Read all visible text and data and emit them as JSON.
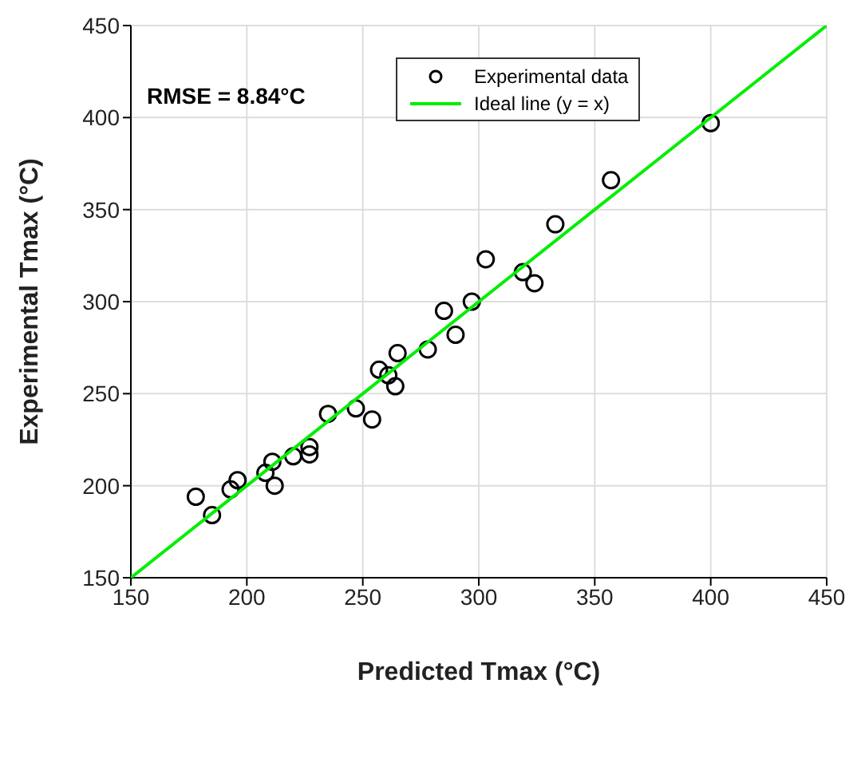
{
  "chart_data": {
    "type": "scatter",
    "xlabel": "Predicted Tmax (°C)",
    "ylabel": "Experimental Tmax (°C)",
    "annotations": [
      "RMSE = 8.84°C"
    ],
    "x": [
      178,
      185,
      193,
      196,
      208,
      211,
      212,
      220,
      227,
      227,
      235,
      247,
      254,
      257,
      261,
      264,
      265,
      278,
      285,
      290,
      297,
      303,
      319,
      324,
      333,
      357,
      400
    ],
    "series": [
      {
        "name": "Experimental data",
        "color": "#000000",
        "marker": "circle",
        "values": [
          194,
          184,
          198,
          203,
          207,
          213,
          200,
          216,
          217,
          221,
          239,
          242,
          236,
          263,
          260,
          254,
          272,
          274,
          295,
          282,
          300,
          323,
          316,
          310,
          342,
          366,
          397
        ]
      },
      {
        "name": "Ideal line (y = x)",
        "type": "line",
        "color": "#00ee00",
        "marker": "none",
        "line_style": "solid",
        "x": [
          150,
          450
        ],
        "values": [
          150,
          450
        ]
      }
    ],
    "xlim": [
      150,
      450
    ],
    "ylim": [
      150,
      450
    ],
    "xticks": [
      150,
      200,
      250,
      300,
      350,
      400,
      450
    ],
    "yticks": [
      150,
      200,
      250,
      300,
      350,
      400,
      450
    ],
    "grid": true,
    "legend": "top"
  }
}
